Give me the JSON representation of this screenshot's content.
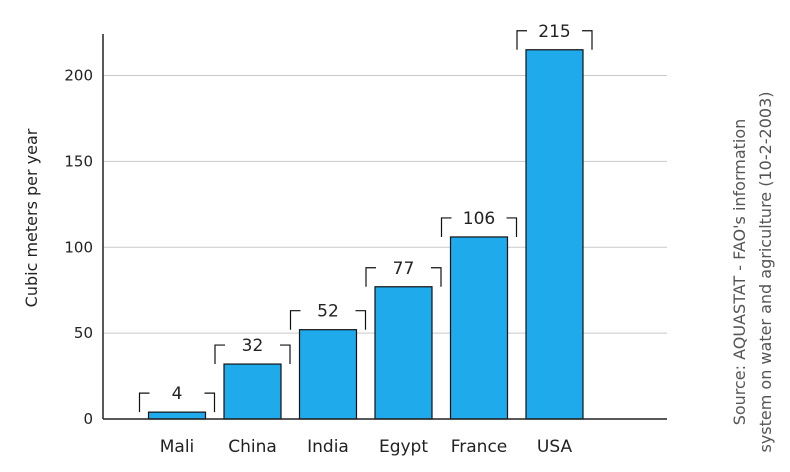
{
  "chart_data": {
    "type": "bar",
    "categories": [
      "Mali",
      "China",
      "India",
      "Egypt",
      "France",
      "USA"
    ],
    "values": [
      4,
      32,
      52,
      77,
      106,
      215
    ],
    "value_labels": [
      "4",
      "32",
      "52",
      "77",
      "106",
      "215"
    ],
    "ylabel": "Cubic meters per year",
    "ylim": [
      0,
      230
    ],
    "yticks": [
      0,
      50,
      100,
      150,
      200
    ],
    "ytick_labels": [
      "0",
      "50",
      "100",
      "150",
      "200"
    ],
    "grid": true,
    "bar_color": "#1eaaeb",
    "source_lines": [
      "Source: AQUASTAT - FAO's information",
      "system on water and agriculture (10-2-2003)"
    ]
  }
}
